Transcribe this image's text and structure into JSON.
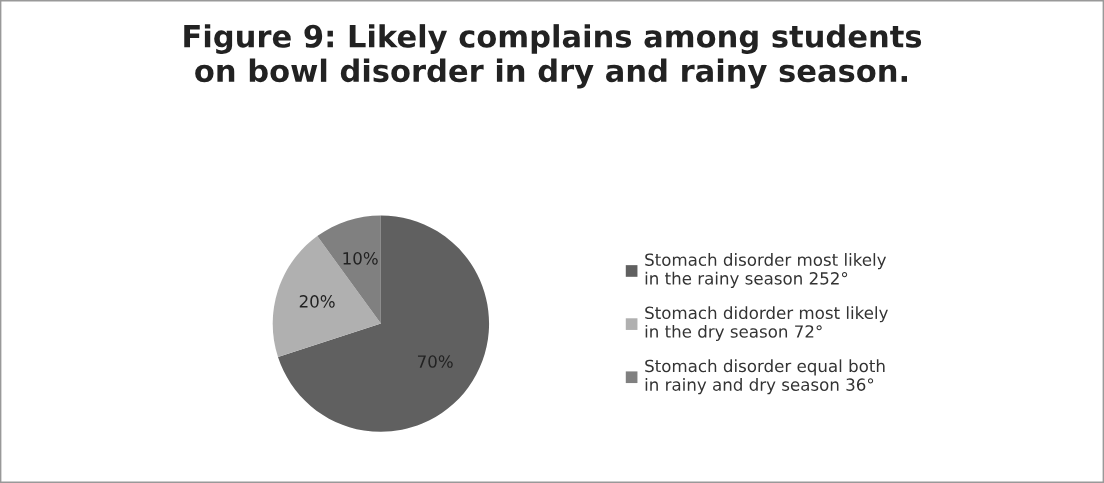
{
  "chart_data": {
    "type": "pie",
    "title": "Figure 9: Likely complains among students\non bowl disorder in dry and rainy season.",
    "categories": [
      "Stomach disorder most likely\nin the rainy season 252°",
      "Stomach didorder most likely\nin the dry season 72°",
      "Stomach disorder equal both\nin rainy and dry season 36°"
    ],
    "values": [
      70,
      20,
      10
    ],
    "value_labels": [
      "70%",
      "20%",
      "10%"
    ],
    "colors": [
      "#606060",
      "#b0b0b0",
      "#808080"
    ],
    "legend": "right"
  }
}
